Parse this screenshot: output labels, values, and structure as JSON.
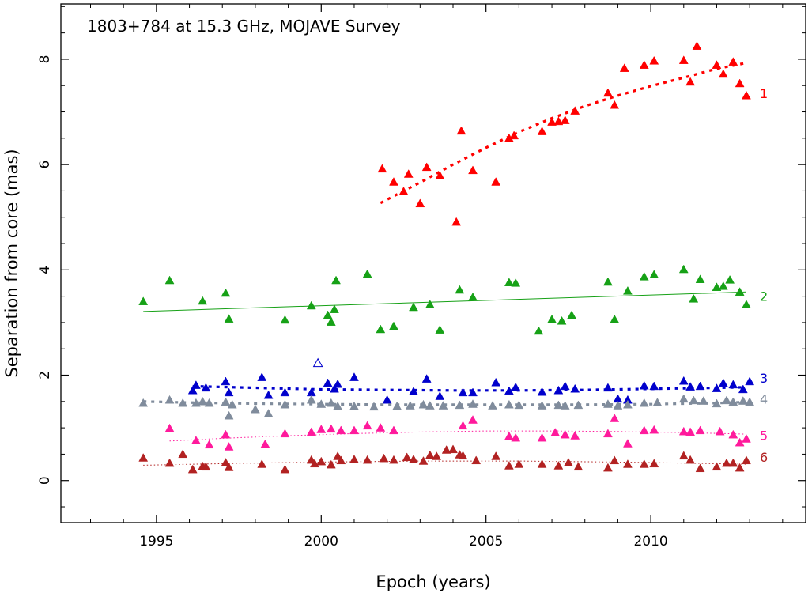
{
  "chart_data": {
    "type": "scatter",
    "title": "1803+784 at 15.3 GHz, MOJAVE Survey",
    "xlabel": "Epoch (years)",
    "ylabel": "Separation from core (mas)",
    "xlim": [
      1992.1,
      2014.7
    ],
    "ylim": [
      -0.8,
      9.05
    ],
    "xticks": [
      1995,
      2000,
      2005,
      2010
    ],
    "yticks": [
      0,
      2,
      4,
      6,
      8
    ],
    "grid": false,
    "series": [
      {
        "name": "1",
        "color": "#ff0000",
        "fit_style": "dotted-thick",
        "fit": [
          [
            2001.8,
            5.27
          ],
          [
            2003.0,
            5.66
          ],
          [
            2004.0,
            6.0
          ],
          [
            2005.0,
            6.32
          ],
          [
            2006.0,
            6.62
          ],
          [
            2007.0,
            6.88
          ],
          [
            2008.0,
            7.11
          ],
          [
            2009.0,
            7.31
          ],
          [
            2010.0,
            7.49
          ],
          [
            2011.0,
            7.65
          ],
          [
            2012.0,
            7.82
          ],
          [
            2012.9,
            7.93
          ]
        ],
        "points": [
          [
            2001.85,
            5.92
          ],
          [
            2002.2,
            5.67
          ],
          [
            2002.5,
            5.49
          ],
          [
            2002.65,
            5.82
          ],
          [
            2003.0,
            5.26
          ],
          [
            2003.2,
            5.95
          ],
          [
            2003.6,
            5.79
          ],
          [
            2004.1,
            4.91
          ],
          [
            2004.25,
            6.64
          ],
          [
            2004.6,
            5.89
          ],
          [
            2005.3,
            5.67
          ],
          [
            2005.7,
            6.5
          ],
          [
            2005.85,
            6.55
          ],
          [
            2006.7,
            6.63
          ],
          [
            2007.0,
            6.81
          ],
          [
            2007.2,
            6.82
          ],
          [
            2007.4,
            6.84
          ],
          [
            2007.7,
            7.02
          ],
          [
            2008.7,
            7.36
          ],
          [
            2008.9,
            7.13
          ],
          [
            2009.2,
            7.83
          ],
          [
            2009.8,
            7.89
          ],
          [
            2010.1,
            7.97
          ],
          [
            2011.0,
            7.98
          ],
          [
            2011.2,
            7.57
          ],
          [
            2011.4,
            8.25
          ],
          [
            2012.0,
            7.89
          ],
          [
            2012.2,
            7.72
          ],
          [
            2012.5,
            7.95
          ],
          [
            2012.7,
            7.54
          ],
          [
            2012.9,
            7.31
          ]
        ]
      },
      {
        "name": "2",
        "color": "#16a116",
        "fit_style": "solid-thin",
        "fit": [
          [
            1994.6,
            3.21
          ],
          [
            2012.9,
            3.58
          ]
        ],
        "points": [
          [
            1994.6,
            3.4
          ],
          [
            1995.4,
            3.8
          ],
          [
            1996.4,
            3.41
          ],
          [
            1997.1,
            3.56
          ],
          [
            1997.2,
            3.07
          ],
          [
            1998.9,
            3.05
          ],
          [
            1999.7,
            3.32
          ],
          [
            2000.2,
            3.14
          ],
          [
            2000.3,
            3.01
          ],
          [
            2000.4,
            3.25
          ],
          [
            2000.45,
            3.8
          ],
          [
            2001.4,
            3.92
          ],
          [
            2001.8,
            2.87
          ],
          [
            2002.2,
            2.93
          ],
          [
            2002.8,
            3.29
          ],
          [
            2003.3,
            3.34
          ],
          [
            2003.6,
            2.86
          ],
          [
            2004.2,
            3.62
          ],
          [
            2004.6,
            3.48
          ],
          [
            2005.7,
            3.76
          ],
          [
            2005.9,
            3.75
          ],
          [
            2006.6,
            2.84
          ],
          [
            2007.0,
            3.06
          ],
          [
            2007.3,
            3.03
          ],
          [
            2007.6,
            3.14
          ],
          [
            2008.7,
            3.77
          ],
          [
            2008.9,
            3.06
          ],
          [
            2009.3,
            3.6
          ],
          [
            2009.8,
            3.87
          ],
          [
            2010.1,
            3.91
          ],
          [
            2011.0,
            4.01
          ],
          [
            2011.3,
            3.45
          ],
          [
            2011.5,
            3.82
          ],
          [
            2012.0,
            3.67
          ],
          [
            2012.2,
            3.69
          ],
          [
            2012.4,
            3.81
          ],
          [
            2012.7,
            3.58
          ],
          [
            2012.9,
            3.34
          ]
        ]
      },
      {
        "name": "3",
        "color": "#0000cc",
        "fit_style": "dotted-thick",
        "fit": [
          [
            1996.1,
            1.79
          ],
          [
            1998.0,
            1.76
          ],
          [
            2000.0,
            1.73
          ],
          [
            2002.0,
            1.72
          ],
          [
            2004.0,
            1.71
          ],
          [
            2006.0,
            1.71
          ],
          [
            2008.0,
            1.72
          ],
          [
            2010.0,
            1.74
          ],
          [
            2012.0,
            1.76
          ],
          [
            2012.9,
            1.77
          ]
        ],
        "points": [
          [
            1996.1,
            1.71
          ],
          [
            1996.2,
            1.81
          ],
          [
            1996.5,
            1.76
          ],
          [
            1997.1,
            1.88
          ],
          [
            1997.2,
            1.67
          ],
          [
            1998.2,
            1.96
          ],
          [
            1998.4,
            1.62
          ],
          [
            1998.9,
            1.67
          ],
          [
            1999.7,
            1.67
          ],
          [
            2000.2,
            1.85
          ],
          [
            2000.4,
            1.74
          ],
          [
            2000.5,
            1.83
          ],
          [
            2001.0,
            1.96
          ],
          [
            2002.0,
            1.53
          ],
          [
            2002.8,
            1.69
          ],
          [
            2003.2,
            1.93
          ],
          [
            2003.6,
            1.6
          ],
          [
            2004.3,
            1.67
          ],
          [
            2004.6,
            1.67
          ],
          [
            2005.3,
            1.86
          ],
          [
            2005.7,
            1.7
          ],
          [
            2005.9,
            1.77
          ],
          [
            2006.7,
            1.68
          ],
          [
            2007.2,
            1.71
          ],
          [
            2007.4,
            1.79
          ],
          [
            2007.7,
            1.74
          ],
          [
            2008.7,
            1.76
          ],
          [
            2009.0,
            1.55
          ],
          [
            2009.3,
            1.53
          ],
          [
            2009.8,
            1.8
          ],
          [
            2010.1,
            1.79
          ],
          [
            2011.0,
            1.89
          ],
          [
            2011.2,
            1.78
          ],
          [
            2011.5,
            1.79
          ],
          [
            2012.0,
            1.75
          ],
          [
            2012.2,
            1.85
          ],
          [
            2012.5,
            1.82
          ],
          [
            2012.8,
            1.73
          ],
          [
            2013.0,
            1.88
          ]
        ]
      },
      {
        "name": "4",
        "color": "#808c9c",
        "fit_style": "dotted-thick",
        "fit": [
          [
            1994.6,
            1.5
          ],
          [
            1996.0,
            1.48
          ],
          [
            1998.0,
            1.46
          ],
          [
            2000.0,
            1.45
          ],
          [
            2002.0,
            1.44
          ],
          [
            2004.0,
            1.44
          ],
          [
            2006.0,
            1.44
          ],
          [
            2008.0,
            1.44
          ],
          [
            2010.0,
            1.45
          ],
          [
            2012.0,
            1.47
          ],
          [
            2012.9,
            1.49
          ]
        ],
        "points": [
          [
            1994.6,
            1.47
          ],
          [
            1995.4,
            1.53
          ],
          [
            1995.8,
            1.47
          ],
          [
            1996.2,
            1.47
          ],
          [
            1996.4,
            1.5
          ],
          [
            1996.6,
            1.47
          ],
          [
            1997.1,
            1.49
          ],
          [
            1997.2,
            1.23
          ],
          [
            1997.3,
            1.44
          ],
          [
            1998.0,
            1.35
          ],
          [
            1998.4,
            1.27
          ],
          [
            1998.9,
            1.44
          ],
          [
            1999.7,
            1.53
          ],
          [
            2000.0,
            1.45
          ],
          [
            2000.3,
            1.47
          ],
          [
            2000.5,
            1.41
          ],
          [
            2001.0,
            1.41
          ],
          [
            2001.6,
            1.4
          ],
          [
            2002.3,
            1.41
          ],
          [
            2002.7,
            1.42
          ],
          [
            2003.1,
            1.44
          ],
          [
            2003.3,
            1.42
          ],
          [
            2003.7,
            1.42
          ],
          [
            2004.2,
            1.43
          ],
          [
            2004.6,
            1.45
          ],
          [
            2005.2,
            1.42
          ],
          [
            2005.7,
            1.44
          ],
          [
            2006.0,
            1.43
          ],
          [
            2006.7,
            1.42
          ],
          [
            2007.2,
            1.43
          ],
          [
            2007.4,
            1.42
          ],
          [
            2007.8,
            1.43
          ],
          [
            2008.7,
            1.45
          ],
          [
            2009.0,
            1.42
          ],
          [
            2009.3,
            1.44
          ],
          [
            2009.8,
            1.47
          ],
          [
            2010.2,
            1.48
          ],
          [
            2011.0,
            1.55
          ],
          [
            2011.3,
            1.52
          ],
          [
            2011.6,
            1.51
          ],
          [
            2012.0,
            1.46
          ],
          [
            2012.3,
            1.52
          ],
          [
            2012.5,
            1.49
          ],
          [
            2012.8,
            1.51
          ],
          [
            2013.0,
            1.49
          ]
        ]
      },
      {
        "name": "5",
        "color": "#ff1a9c",
        "fit_style": "dotted-thin",
        "fit": [
          [
            1995.4,
            0.75
          ],
          [
            1997.0,
            0.8
          ],
          [
            1999.0,
            0.85
          ],
          [
            2001.0,
            0.89
          ],
          [
            2003.0,
            0.92
          ],
          [
            2005.0,
            0.94
          ],
          [
            2007.0,
            0.94
          ],
          [
            2009.0,
            0.93
          ],
          [
            2011.0,
            0.91
          ],
          [
            2012.9,
            0.88
          ]
        ],
        "points": [
          [
            1995.4,
            0.99
          ],
          [
            1996.2,
            0.76
          ],
          [
            1996.6,
            0.68
          ],
          [
            1997.1,
            0.87
          ],
          [
            1997.2,
            0.64
          ],
          [
            1998.3,
            0.69
          ],
          [
            1998.9,
            0.89
          ],
          [
            1999.7,
            0.92
          ],
          [
            2000.0,
            0.97
          ],
          [
            2000.3,
            0.98
          ],
          [
            2000.6,
            0.95
          ],
          [
            2001.0,
            0.95
          ],
          [
            2001.4,
            1.04
          ],
          [
            2001.8,
            1.0
          ],
          [
            2002.2,
            0.95
          ],
          [
            2004.3,
            1.04
          ],
          [
            2004.6,
            1.15
          ],
          [
            2005.7,
            0.84
          ],
          [
            2005.9,
            0.81
          ],
          [
            2006.7,
            0.81
          ],
          [
            2007.1,
            0.91
          ],
          [
            2007.4,
            0.87
          ],
          [
            2007.7,
            0.85
          ],
          [
            2008.7,
            0.89
          ],
          [
            2008.9,
            1.18
          ],
          [
            2009.3,
            0.7
          ],
          [
            2009.8,
            0.95
          ],
          [
            2010.1,
            0.96
          ],
          [
            2011.0,
            0.93
          ],
          [
            2011.2,
            0.92
          ],
          [
            2011.5,
            0.95
          ],
          [
            2012.1,
            0.93
          ],
          [
            2012.5,
            0.87
          ],
          [
            2012.7,
            0.72
          ],
          [
            2012.9,
            0.79
          ]
        ]
      },
      {
        "name": "6",
        "color": "#b22222",
        "fit_style": "dotted-thin",
        "fit": [
          [
            1994.6,
            0.29
          ],
          [
            1997.0,
            0.32
          ],
          [
            2000.0,
            0.35
          ],
          [
            2003.0,
            0.37
          ],
          [
            2006.0,
            0.37
          ],
          [
            2009.0,
            0.35
          ],
          [
            2011.0,
            0.33
          ],
          [
            2012.9,
            0.31
          ]
        ],
        "points": [
          [
            1994.6,
            0.43
          ],
          [
            1995.4,
            0.33
          ],
          [
            1995.8,
            0.5
          ],
          [
            1996.1,
            0.21
          ],
          [
            1996.4,
            0.27
          ],
          [
            1996.5,
            0.26
          ],
          [
            1997.1,
            0.34
          ],
          [
            1997.2,
            0.25
          ],
          [
            1998.2,
            0.31
          ],
          [
            1998.9,
            0.21
          ],
          [
            1999.7,
            0.39
          ],
          [
            1999.8,
            0.32
          ],
          [
            2000.0,
            0.36
          ],
          [
            2000.3,
            0.3
          ],
          [
            2000.5,
            0.46
          ],
          [
            2000.6,
            0.38
          ],
          [
            2001.0,
            0.4
          ],
          [
            2001.4,
            0.39
          ],
          [
            2001.9,
            0.42
          ],
          [
            2002.2,
            0.39
          ],
          [
            2002.6,
            0.44
          ],
          [
            2002.8,
            0.4
          ],
          [
            2003.1,
            0.37
          ],
          [
            2003.3,
            0.48
          ],
          [
            2003.5,
            0.46
          ],
          [
            2003.8,
            0.58
          ],
          [
            2004.0,
            0.59
          ],
          [
            2004.2,
            0.49
          ],
          [
            2004.3,
            0.47
          ],
          [
            2004.7,
            0.38
          ],
          [
            2005.3,
            0.46
          ],
          [
            2005.7,
            0.28
          ],
          [
            2006.0,
            0.31
          ],
          [
            2006.7,
            0.31
          ],
          [
            2007.2,
            0.28
          ],
          [
            2007.5,
            0.34
          ],
          [
            2007.8,
            0.26
          ],
          [
            2008.7,
            0.24
          ],
          [
            2008.9,
            0.38
          ],
          [
            2009.3,
            0.31
          ],
          [
            2009.8,
            0.31
          ],
          [
            2010.1,
            0.32
          ],
          [
            2011.0,
            0.47
          ],
          [
            2011.2,
            0.39
          ],
          [
            2011.5,
            0.23
          ],
          [
            2012.0,
            0.26
          ],
          [
            2012.3,
            0.33
          ],
          [
            2012.5,
            0.33
          ],
          [
            2012.7,
            0.24
          ],
          [
            2012.9,
            0.38
          ]
        ]
      }
    ],
    "open_points": [
      {
        "x": 1999.9,
        "y": 2.23,
        "color": "#0000cc"
      }
    ]
  }
}
